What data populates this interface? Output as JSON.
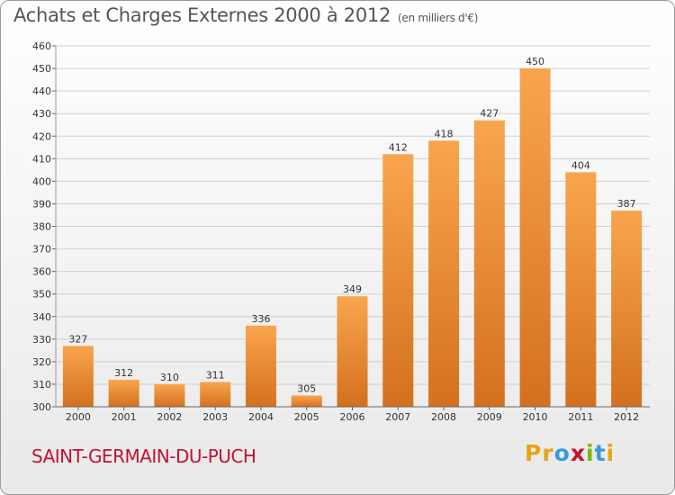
{
  "header": {
    "title": "Achats et Charges Externes 2000 à 2012",
    "subtitle": "(en milliers d'€)"
  },
  "footer": {
    "commune": "SAINT-GERMAIN-DU-PUCH",
    "brand": [
      "P",
      "r",
      "o",
      "x",
      "i",
      "t",
      "i"
    ],
    "brand_colors": [
      "#e8a317",
      "#e8a317",
      "#3a9ad9",
      "#c4122f",
      "#7ab800",
      "#3a9ad9",
      "#e8a317"
    ]
  },
  "chart_data": {
    "type": "bar",
    "categories": [
      "2000",
      "2001",
      "2002",
      "2003",
      "2004",
      "2005",
      "2006",
      "2007",
      "2008",
      "2009",
      "2010",
      "2011",
      "2012"
    ],
    "values": [
      327,
      312,
      310,
      311,
      336,
      305,
      349,
      412,
      418,
      427,
      450,
      404,
      387
    ],
    "title": "Achats et Charges Externes 2000 à 2012",
    "ylim": [
      300,
      460
    ],
    "ytick_step": 10,
    "grid": true,
    "bar_color_top": "#f9a54e",
    "bar_color_bottom": "#d4701e"
  }
}
